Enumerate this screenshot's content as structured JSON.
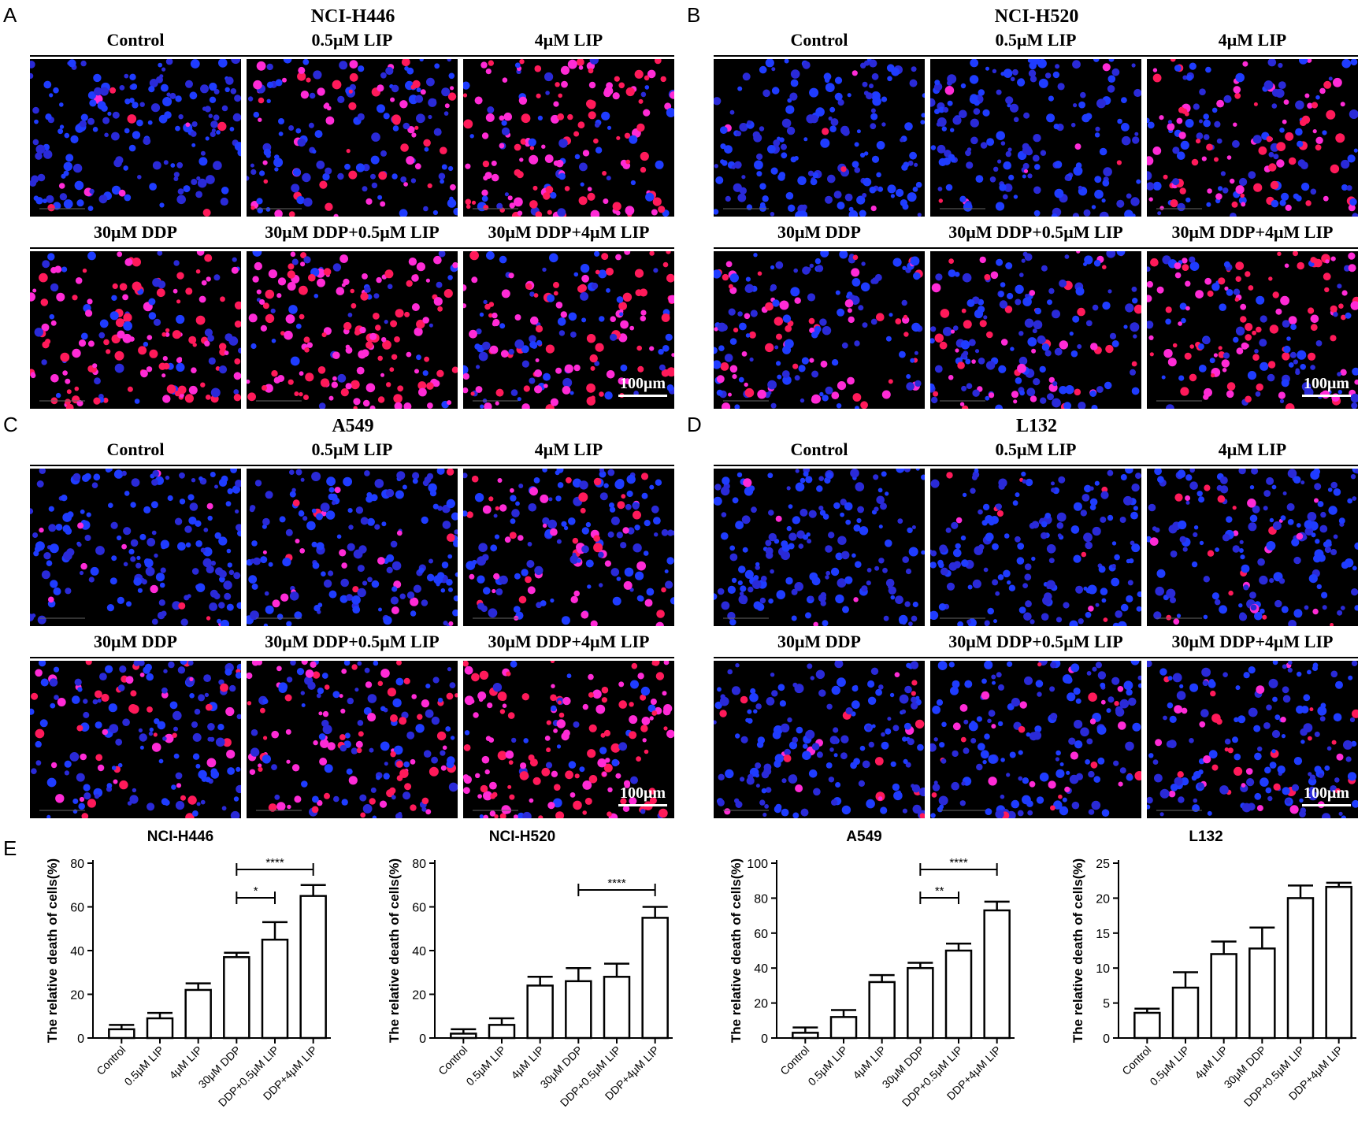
{
  "panels": [
    {
      "letter": "A",
      "cell": "NCI-H446",
      "conditions_top": [
        "Control",
        "0.5μM LIP",
        "4μM LIP"
      ],
      "conditions_bottom": [
        "30μM DDP",
        "30μM DDP+0.5μM LIP",
        "30μM DDP+4μM LIP"
      ],
      "scale": "100μm",
      "red": [
        0.04,
        0.4,
        0.75,
        0.7,
        0.8,
        0.6
      ]
    },
    {
      "letter": "B",
      "cell": "NCI-H520",
      "conditions_top": [
        "Control",
        "0.5μM LIP",
        "4μM LIP"
      ],
      "conditions_bottom": [
        "30μM DDP",
        "30μM DDP+0.5μM LIP",
        "30μM DDP+4μM LIP"
      ],
      "scale": "100μm",
      "red": [
        0.04,
        0.08,
        0.45,
        0.35,
        0.3,
        0.6
      ]
    },
    {
      "letter": "C",
      "cell": "A549",
      "conditions_top": [
        "Control",
        "0.5μM LIP",
        "4μM LIP"
      ],
      "conditions_bottom": [
        "30μM DDP",
        "30μM DDP+0.5μM LIP",
        "30μM DDP+4μM LIP"
      ],
      "scale": "100μm",
      "red": [
        0.05,
        0.12,
        0.35,
        0.4,
        0.5,
        0.8
      ]
    },
    {
      "letter": "D",
      "cell": "L132",
      "conditions_top": [
        "Control",
        "0.5μM LIP",
        "4μM LIP"
      ],
      "conditions_bottom": [
        "30μM DDP",
        "30μM DDP+0.5μM LIP",
        "30μM DDP+4μM LIP"
      ],
      "scale": "100μm",
      "red": [
        0.03,
        0.07,
        0.12,
        0.13,
        0.2,
        0.22
      ]
    }
  ],
  "e_letter": "E",
  "chart_data": [
    {
      "type": "bar",
      "title": "NCI-H446",
      "ylabel": "The relative death of cells(%)",
      "categories": [
        "Control",
        "0.5μM LIP",
        "4μM LIP",
        "30μM DDP",
        "DDP+0.5μM LIP",
        "DDP+4μM LIP"
      ],
      "values": [
        4,
        9,
        22,
        37,
        45,
        65
      ],
      "errors": [
        2,
        2.5,
        3,
        2,
        8,
        5
      ],
      "ylim": [
        0,
        80
      ],
      "yticks": [
        0,
        20,
        40,
        60,
        80
      ],
      "sig": [
        {
          "from": 3,
          "to": 5,
          "label": "****",
          "level": 2
        },
        {
          "from": 3,
          "to": 4,
          "label": "*",
          "level": 1
        }
      ]
    },
    {
      "type": "bar",
      "title": "NCI-H520",
      "ylabel": "The relative death of cells(%)",
      "categories": [
        "Control",
        "0.5μM LIP",
        "4μM LIP",
        "30μM DDP",
        "DDP+0.5μM LIP",
        "DDP+4μM LIP"
      ],
      "values": [
        2,
        6,
        24,
        26,
        28,
        55
      ],
      "errors": [
        2,
        3,
        4,
        6,
        6,
        5
      ],
      "ylim": [
        0,
        80
      ],
      "yticks": [
        0,
        20,
        40,
        60,
        80
      ],
      "sig": [
        {
          "from": 3,
          "to": 5,
          "label": "****",
          "level": 1
        }
      ]
    },
    {
      "type": "bar",
      "title": "A549",
      "ylabel": "The relative death of cells(%)",
      "categories": [
        "Control",
        "0.5μM LIP",
        "4μM LIP",
        "30μM DDP",
        "DDP+0.5μM LIP",
        "DDP+4μM LIP"
      ],
      "values": [
        3,
        12,
        32,
        40,
        50,
        73
      ],
      "errors": [
        3,
        4,
        4,
        3,
        4,
        5
      ],
      "ylim": [
        0,
        100
      ],
      "yticks": [
        0,
        20,
        40,
        60,
        80,
        100
      ],
      "sig": [
        {
          "from": 3,
          "to": 5,
          "label": "****",
          "level": 2
        },
        {
          "from": 3,
          "to": 4,
          "label": "**",
          "level": 1
        }
      ]
    },
    {
      "type": "bar",
      "title": "L132",
      "ylabel": "The relative death of cells(%)",
      "categories": [
        "Control",
        "0.5μM LIP",
        "4μM LIP",
        "30μM DDP",
        "DDP+0.5μM LIP",
        "DDP+4μM LIP"
      ],
      "values": [
        3.6,
        7.2,
        12,
        12.8,
        20,
        21.6
      ],
      "errors": [
        0.6,
        2.2,
        1.8,
        3,
        1.8,
        0.6
      ],
      "ylim": [
        0,
        25
      ],
      "yticks": [
        0,
        5,
        10,
        15,
        20,
        25
      ],
      "sig": []
    }
  ]
}
